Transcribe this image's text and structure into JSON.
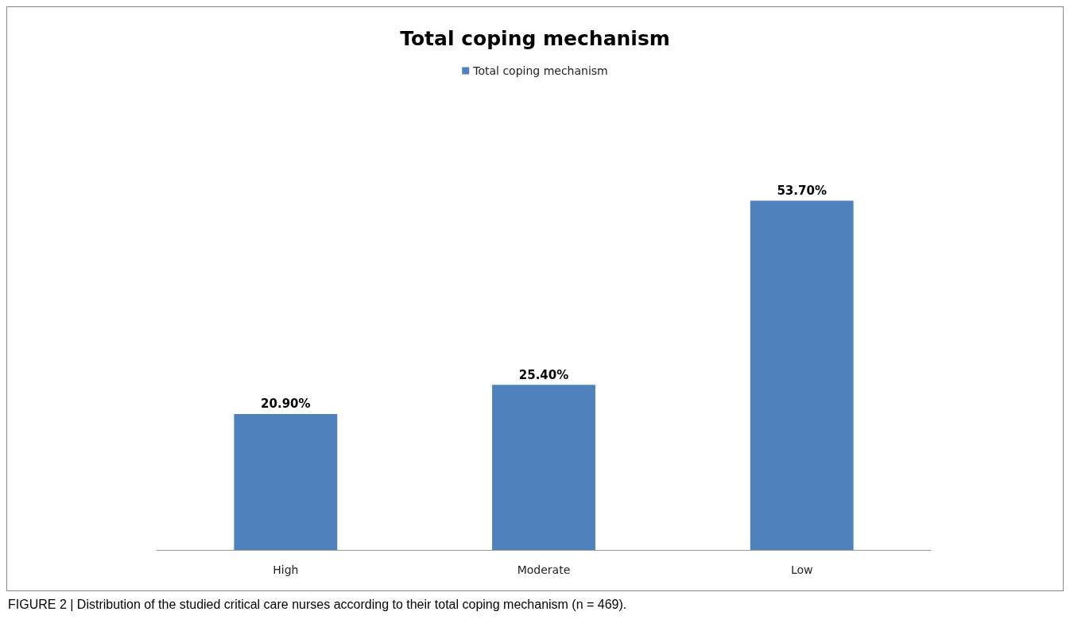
{
  "chart_data": {
    "type": "bar",
    "title": "Total coping mechanism",
    "categories": [
      "High",
      "Moderate",
      "Low"
    ],
    "series": [
      {
        "name": "Total coping mechanism",
        "color": "#4f81bd",
        "values": [
          20.9,
          25.4,
          53.7
        ],
        "value_labels": [
          "20.90%",
          "25.40%",
          "53.70%"
        ]
      }
    ],
    "legend": "top",
    "annotations": [
      "FIGURE 2 | Distribution of the studied critical care nurses according to their total coping mechanism (n = 469)."
    ]
  }
}
